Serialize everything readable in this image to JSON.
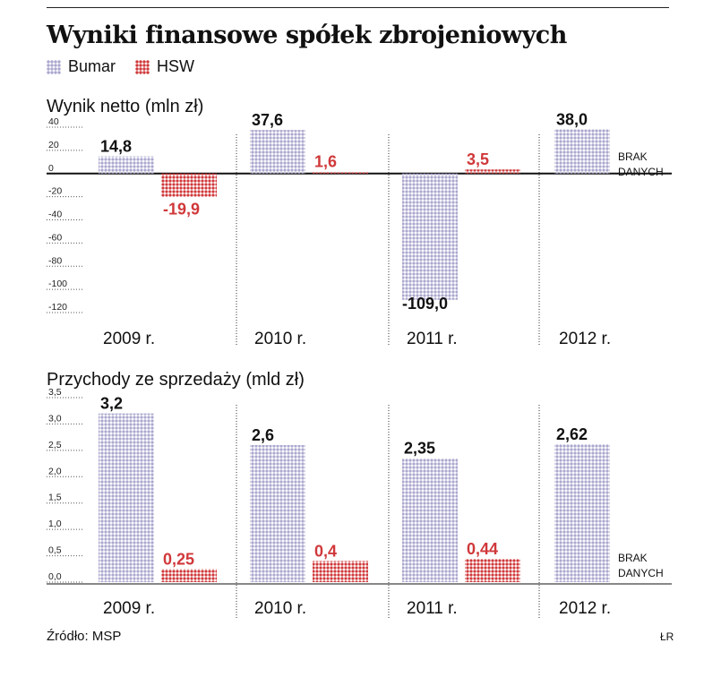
{
  "title": "Wyniki finansowe spółek zbrojeniowych",
  "legend": [
    {
      "name": "Bumar",
      "color": "#aaa7ce"
    },
    {
      "name": "HSW",
      "color": "#d0383a"
    }
  ],
  "source": "Źródło: MSP",
  "author": "ŁR",
  "colors": {
    "bumar": "#aaa7ce",
    "hsw": "#d0383a",
    "label_dark": "#111111"
  },
  "chart_data": [
    {
      "type": "bar",
      "title": "Wynik netto (mln zł)",
      "categories": [
        "2009 r.",
        "2010 r.",
        "2011 r.",
        "2012 r."
      ],
      "series": [
        {
          "name": "Bumar",
          "values": [
            14.8,
            37.6,
            -109.0,
            38.0
          ],
          "labels": [
            "14,8",
            "37,6",
            "-109,0",
            "38,0"
          ]
        },
        {
          "name": "HSW",
          "values": [
            -19.9,
            1.6,
            3.5,
            null
          ],
          "labels": [
            "-19,9",
            "1,6",
            "3,5",
            ""
          ]
        }
      ],
      "ylim": [
        -120,
        40
      ],
      "yticks": [
        40,
        20,
        0,
        -20,
        -40,
        -60,
        -80,
        -100,
        -120
      ],
      "ytick_labels": [
        "40",
        "20",
        "0",
        "-20",
        "-40",
        "-60",
        "-80",
        "-100",
        "-120"
      ],
      "no_data": [
        "BRAK",
        "DANYCH"
      ],
      "grid": false,
      "legend_position": "top-left"
    },
    {
      "type": "bar",
      "title": "Przychody ze sprzedaży (mld zł)",
      "categories": [
        "2009 r.",
        "2010 r.",
        "2011 r.",
        "2012 r."
      ],
      "series": [
        {
          "name": "Bumar",
          "values": [
            3.2,
            2.6,
            2.35,
            2.62
          ],
          "labels": [
            "3,2",
            "2,6",
            "2,35",
            "2,62"
          ]
        },
        {
          "name": "HSW",
          "values": [
            0.25,
            0.4,
            0.44,
            null
          ],
          "labels": [
            "0,25",
            "0,4",
            "0,44",
            ""
          ]
        }
      ],
      "ylim": [
        0,
        3.5
      ],
      "yticks": [
        3.5,
        3.0,
        2.5,
        2.0,
        1.5,
        1.0,
        0.5,
        0.0
      ],
      "ytick_labels": [
        "3,5",
        "3,0",
        "2,5",
        "2,0",
        "1,5",
        "1,0",
        "0,5",
        "0,0"
      ],
      "no_data": [
        "BRAK",
        "DANYCH"
      ],
      "grid": false,
      "legend_position": "top-left"
    }
  ]
}
